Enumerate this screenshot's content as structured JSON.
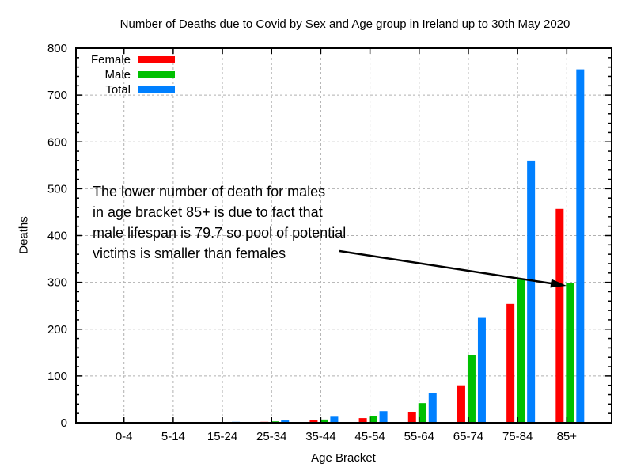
{
  "chart_data": {
    "type": "bar",
    "title": "Number of Deaths due to Covid by Sex and Age group in Ireland up to 30th May 2020",
    "xlabel": "Age Bracket",
    "ylabel": "Deaths",
    "categories": [
      "0-4",
      "5-14",
      "15-24",
      "25-34",
      "35-44",
      "45-54",
      "55-64",
      "65-74",
      "75-84",
      "85+"
    ],
    "series": [
      {
        "name": "Female",
        "color": "#ff0000",
        "values": [
          0,
          0,
          1,
          2,
          6,
          10,
          22,
          80,
          254,
          457
        ]
      },
      {
        "name": "Male",
        "color": "#00c000",
        "values": [
          0,
          0,
          1,
          3,
          7,
          15,
          42,
          144,
          306,
          298
        ]
      },
      {
        "name": "Total",
        "color": "#0080ff",
        "values": [
          0,
          0,
          2,
          5,
          13,
          25,
          64,
          224,
          560,
          755
        ]
      }
    ],
    "ylim": [
      0,
      800
    ],
    "ytick_step": 100,
    "yminor_step": 20,
    "grid": true,
    "legend_position": "top-left",
    "ytick_labels": [
      "0",
      "100",
      "200",
      "300",
      "400",
      "500",
      "600",
      "700",
      "800"
    ]
  },
  "annotation": {
    "lines": [
      "The lower number of death for males",
      "in age bracket 85+ is due to fact that",
      "male lifespan is 79.7 so pool of potential",
      "victims is smaller than females"
    ],
    "arrow": {
      "from": [
        429,
        317
      ],
      "to": [
        716,
        361
      ]
    },
    "arrow_target": "male-85+-bar"
  },
  "colors": {
    "grid": "#b0b0b0",
    "axis": "#000000",
    "text": "#000000",
    "background": "#ffffff"
  }
}
